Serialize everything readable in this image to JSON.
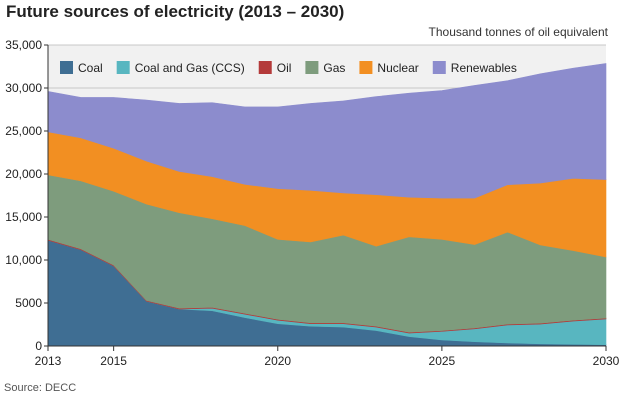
{
  "title": "Future sources of electricity (2013 – 2030)",
  "unit_label": "Thousand tonnes of oil equivalent",
  "source": "Source: DECC",
  "chart_data": {
    "type": "area",
    "stacked": true,
    "title": "Future sources of electricity (2013 – 2030)",
    "ylabel": "Thousand tonnes of oil equivalent",
    "xlim": [
      2013,
      2030
    ],
    "ylim": [
      0,
      35000
    ],
    "x": [
      2013,
      2014,
      2015,
      2016,
      2017,
      2018,
      2019,
      2020,
      2021,
      2022,
      2023,
      2024,
      2025,
      2026,
      2027,
      2028,
      2029,
      2030
    ],
    "x_ticks": [
      2013,
      2015,
      2020,
      2025,
      2030
    ],
    "x_tick_labels": [
      "2013",
      "2015",
      "2020",
      "2025",
      "2030"
    ],
    "y_ticks": [
      0,
      5000,
      10000,
      15000,
      20000,
      25000,
      30000,
      35000
    ],
    "y_tick_labels": [
      "0",
      "5000",
      "10,000",
      "15,000",
      "20,000",
      "25,000",
      "30,000",
      "35,000"
    ],
    "grid": "horizontal",
    "legend_position": "top",
    "series": [
      {
        "name": "Coal",
        "color": "#3f6e93",
        "values": [
          12300,
          11200,
          9300,
          5200,
          4300,
          4100,
          3300,
          2600,
          2300,
          2200,
          1800,
          1100,
          700,
          500,
          350,
          250,
          200,
          150
        ]
      },
      {
        "name": "Coal and Gas (CCS)",
        "color": "#58b6c0",
        "values": [
          0,
          0,
          0,
          0,
          0,
          300,
          400,
          400,
          300,
          400,
          400,
          400,
          1000,
          1500,
          2100,
          2300,
          2700,
          3000
        ]
      },
      {
        "name": "Oil",
        "color": "#b43a3a",
        "values": [
          100,
          100,
          100,
          100,
          100,
          100,
          100,
          100,
          100,
          100,
          100,
          100,
          100,
          100,
          100,
          100,
          100,
          100
        ]
      },
      {
        "name": "Gas",
        "color": "#7e9c7d",
        "values": [
          7500,
          7900,
          8600,
          11200,
          11100,
          10300,
          10200,
          9300,
          9400,
          10200,
          9300,
          11100,
          10600,
          9700,
          10700,
          9100,
          8100,
          7100
        ]
      },
      {
        "name": "Nuclear",
        "color": "#f28f22",
        "values": [
          5000,
          5000,
          5000,
          5000,
          4800,
          4900,
          4800,
          5900,
          6000,
          4900,
          6000,
          4600,
          4800,
          5400,
          5500,
          7200,
          8400,
          9000
        ]
      },
      {
        "name": "Renewables",
        "color": "#8c8ccd",
        "values": [
          4700,
          4700,
          5900,
          7100,
          7900,
          8600,
          9000,
          9500,
          10100,
          10700,
          11400,
          12100,
          12500,
          13100,
          12100,
          12700,
          12800,
          13500
        ]
      }
    ]
  }
}
